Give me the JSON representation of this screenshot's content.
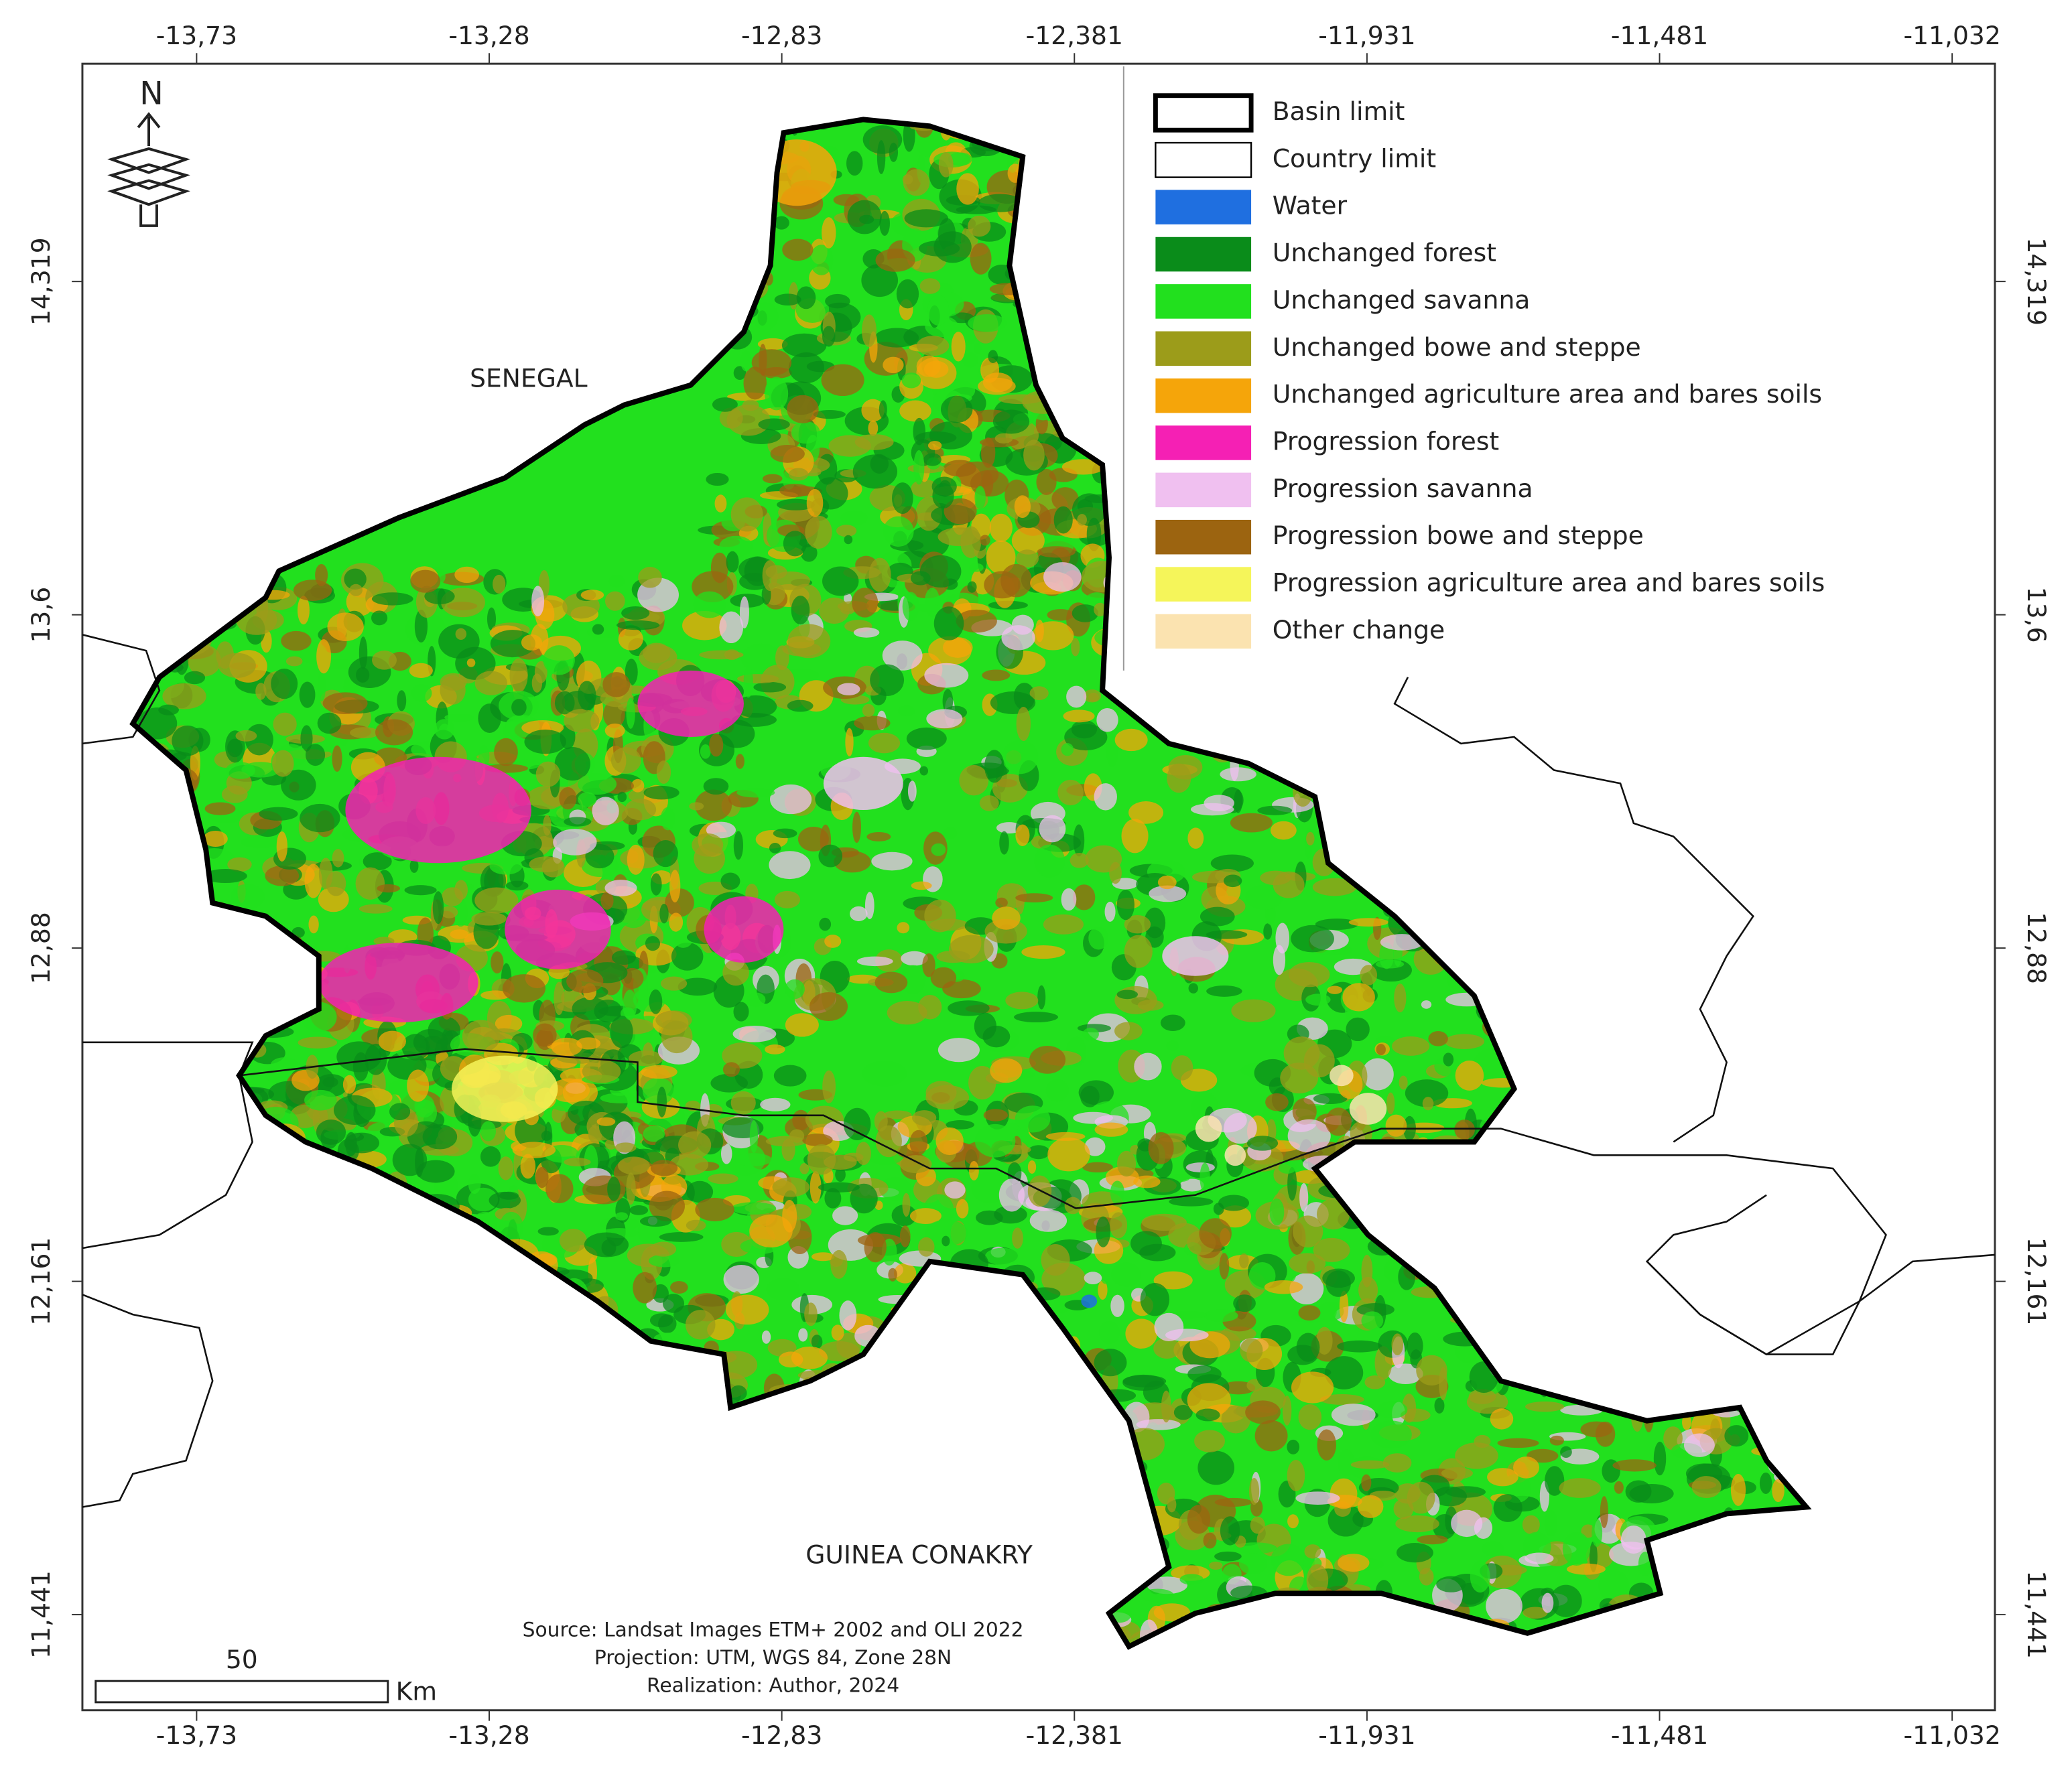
{
  "graticule": {
    "longitudes": [
      "-13,73",
      "-13,28",
      "-12,83",
      "-12,381",
      "-11,931",
      "-11,481",
      "-11,032"
    ],
    "latitudes": [
      "14,319",
      "13,6",
      "12,88",
      "12,161",
      "11,441"
    ]
  },
  "north_arrow": "N",
  "countries": [
    "SENEGAL",
    "GUINEA CONAKRY"
  ],
  "legend": {
    "items": [
      {
        "label": "Basin limit",
        "color": "#ffffff"
      },
      {
        "label": "Country limit",
        "color": "#ffffff"
      },
      {
        "label": "Water",
        "color": "#1f6fe0"
      },
      {
        "label": "Unchanged forest",
        "color": "#0a8c1a"
      },
      {
        "label": "Unchanged savanna",
        "color": "#22e01e"
      },
      {
        "label": "Unchanged bowe and steppe",
        "color": "#9c9c1a"
      },
      {
        "label": "Unchanged agriculture area and bares soils",
        "color": "#f5a50a"
      },
      {
        "label": "Progression forest",
        "color": "#f520b4"
      },
      {
        "label": "Progression savanna",
        "color": "#f0c0f0"
      },
      {
        "label": "Progression bowe and steppe",
        "color": "#9c6410"
      },
      {
        "label": "Progression agriculture area and bares soils",
        "color": "#f5f55a"
      },
      {
        "label": "Other change",
        "color": "#fbe3b0"
      }
    ]
  },
  "source": [
    "Source: Landsat Images ETM+ 2002 and OLI 2022",
    "Projection: UTM, WGS 84, Zone 28N",
    "Realization: Author, 2024"
  ],
  "scale_bar": {
    "distance": "50",
    "unit": "Km"
  }
}
